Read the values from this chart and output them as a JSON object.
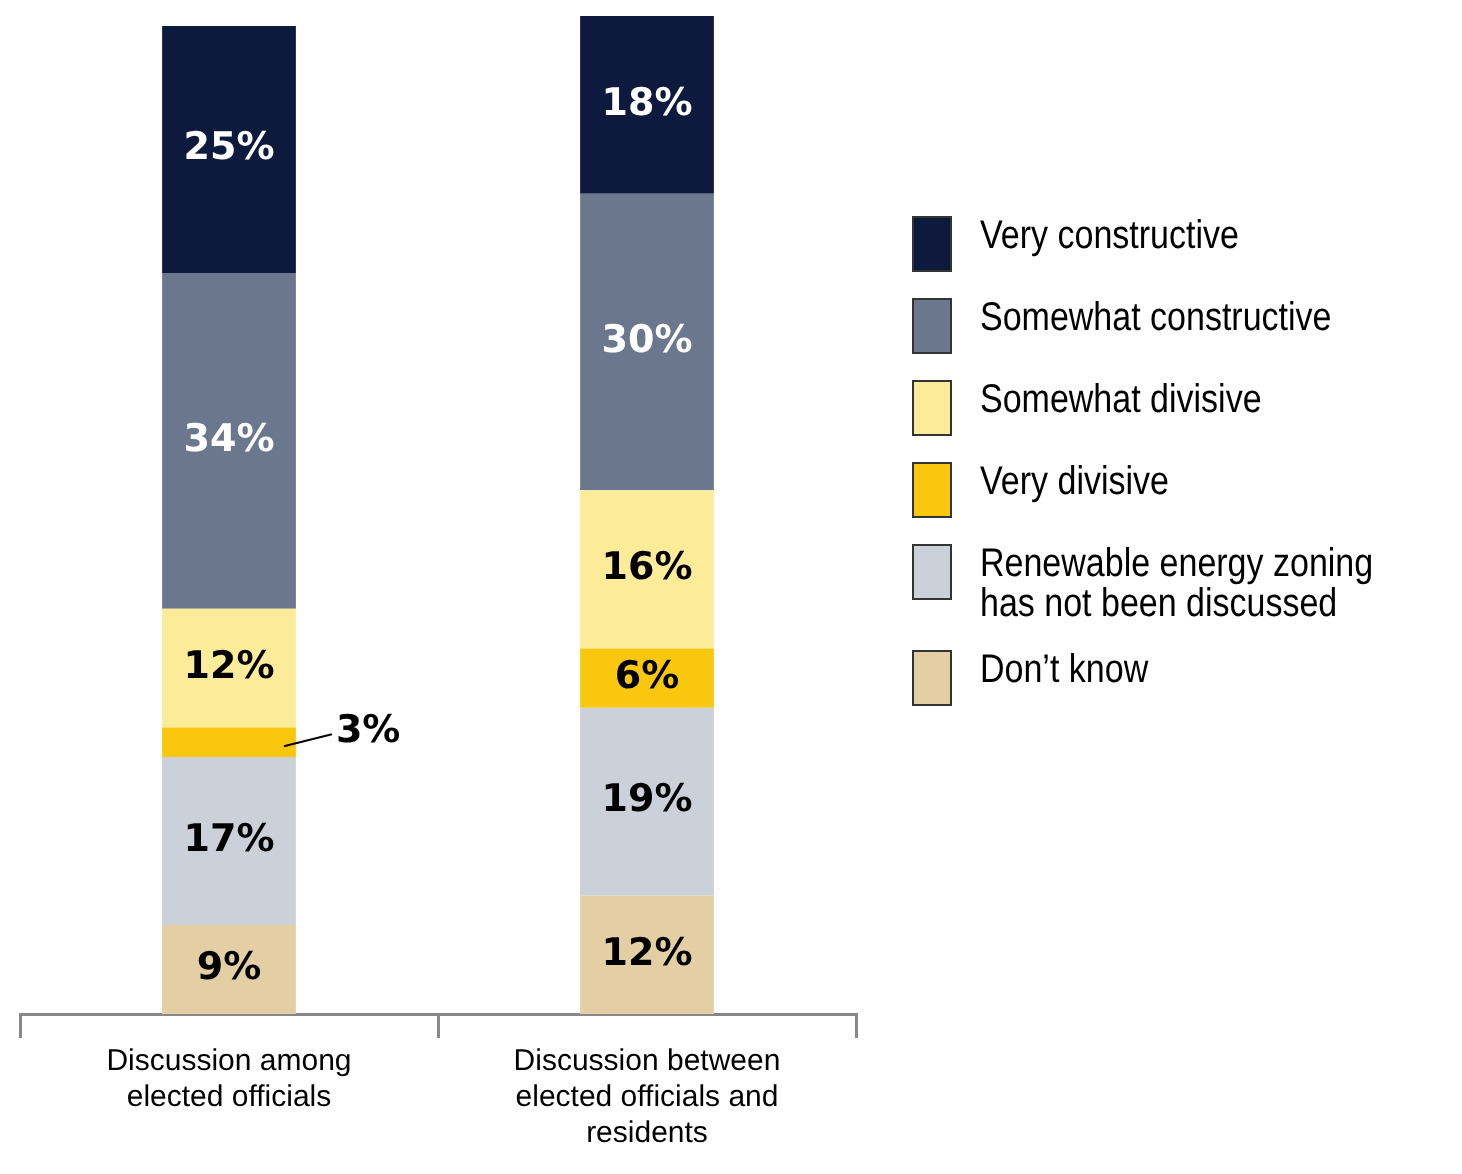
{
  "chart_data": {
    "type": "bar",
    "stacked": true,
    "categories": [
      "Discussion among elected officials",
      "Discussion between elected officials and residents"
    ],
    "series": [
      {
        "name": "Don’t know",
        "color": "#e3cfa3",
        "values": [
          9,
          12
        ],
        "value_labels": [
          "9%",
          "12%"
        ]
      },
      {
        "name": "Renewable energy zoning has not been discussed",
        "color": "#ccd0d8",
        "values": [
          17,
          19
        ],
        "value_labels": [
          "17%",
          "19%"
        ]
      },
      {
        "name": "Very divisive",
        "color": "#f9c80e",
        "values": [
          3,
          6
        ],
        "value_labels": [
          "3%",
          "6%"
        ]
      },
      {
        "name": "Somewhat divisive",
        "color": "#fcec9a",
        "values": [
          12,
          16
        ],
        "value_labels": [
          "12%",
          "16%"
        ]
      },
      {
        "name": "Somewhat constructive",
        "color": "#6b778c",
        "values": [
          34,
          30
        ],
        "value_labels": [
          "34%",
          "30%"
        ]
      },
      {
        "name": "Very constructive",
        "color": "#0d1a3d",
        "values": [
          25,
          18
        ],
        "value_labels": [
          "25%",
          "18%"
        ]
      }
    ],
    "legend": "right",
    "tick_labels": "x"
  }
}
